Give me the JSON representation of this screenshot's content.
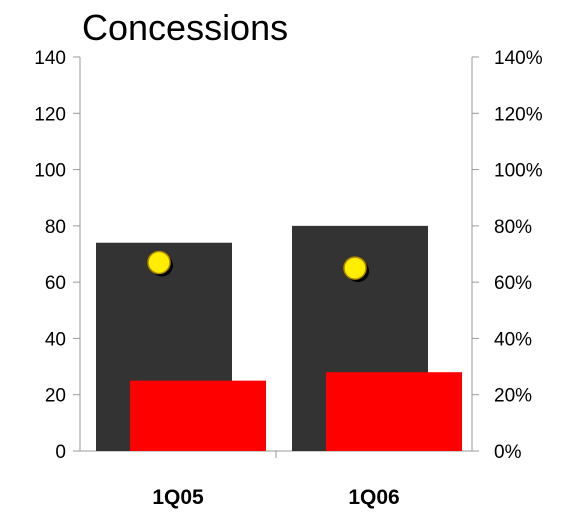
{
  "chart_data": {
    "type": "bar",
    "title": "Concessions",
    "categories": [
      "1Q05",
      "1Q06"
    ],
    "series": [
      {
        "name": "",
        "axis": "left",
        "color": "#333333",
        "values": [
          74,
          80
        ]
      },
      {
        "name": "",
        "axis": "left",
        "color": "#ff0000",
        "values": [
          25,
          28
        ]
      },
      {
        "name": "",
        "axis": "right",
        "type": "scatter",
        "color": "#ffee00",
        "values": [
          67,
          65
        ]
      }
    ],
    "ylim": [
      0,
      140
    ],
    "yticks": [
      "0",
      "20",
      "40",
      "60",
      "80",
      "100",
      "120",
      "140"
    ],
    "y2lim": [
      0,
      140
    ],
    "y2ticks": [
      "0%",
      "20%",
      "40%",
      "60%",
      "80%",
      "100%",
      "120%",
      "140%"
    ],
    "xlabel": "",
    "ylabel": "",
    "grid": false,
    "legend": "none"
  }
}
